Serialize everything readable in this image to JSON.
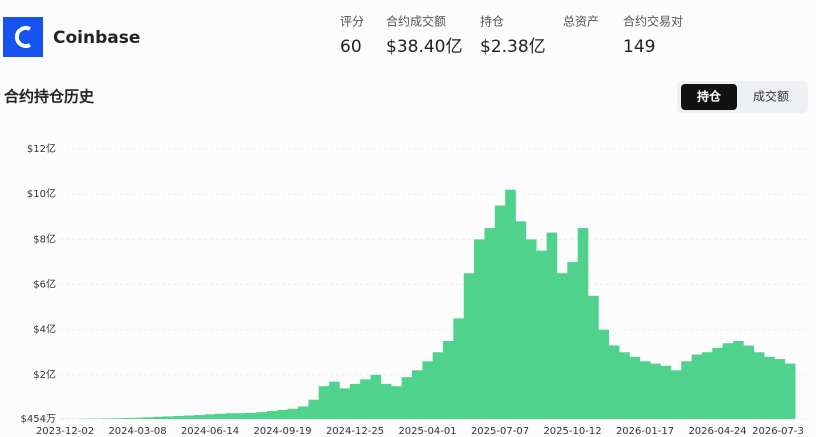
{
  "header": {
    "name": "Coinbase"
  },
  "stats": [
    {
      "label": "评分",
      "value": "60"
    },
    {
      "label": "合约成交额",
      "value": "$38.40亿"
    },
    {
      "label": "持仓",
      "value": "$2.38亿"
    },
    {
      "label": "总资产"
    },
    {
      "label": "合约交易对",
      "value": "149"
    }
  ],
  "section_title": "合约持仓历史",
  "toggle": [
    "持仓",
    "成交额"
  ],
  "chart_data": {
    "type": "bar",
    "color": "#4fd28c",
    "categories": [
      "2023-12-02",
      null,
      null,
      null,
      null,
      null,
      null,
      "2024-03-08",
      null,
      null,
      null,
      null,
      null,
      null,
      "2024-06-14",
      null,
      null,
      null,
      null,
      null,
      null,
      "2024-09-19",
      null,
      null,
      null,
      null,
      null,
      null,
      "2024-12-25",
      null,
      null,
      null,
      null,
      null,
      null,
      "2025-04-01",
      null,
      null,
      null,
      null,
      null,
      null,
      "2025-07-07",
      null,
      null,
      null,
      null,
      null,
      null,
      "2025-10-12",
      null,
      null,
      null,
      null,
      null,
      null,
      "2026-01-17",
      null,
      null,
      null,
      null,
      null,
      null,
      "2026-04-24",
      null,
      null,
      null,
      null,
      null,
      null,
      "2026-07-3"
    ],
    "values": [
      0.05,
      0.05,
      0.06,
      0.06,
      0.07,
      0.08,
      0.09,
      0.1,
      0.12,
      0.14,
      0.16,
      0.18,
      0.2,
      0.22,
      0.25,
      0.28,
      0.3,
      0.3,
      0.32,
      0.35,
      0.4,
      0.45,
      0.5,
      0.6,
      0.9,
      1.5,
      1.7,
      1.4,
      1.6,
      1.8,
      2.0,
      1.6,
      1.5,
      1.9,
      2.2,
      2.6,
      3.0,
      3.5,
      4.5,
      6.5,
      8.0,
      8.5,
      9.5,
      10.2,
      8.8,
      8.0,
      7.5,
      8.3,
      6.5,
      7.0,
      8.5,
      5.5,
      4.0,
      3.3,
      3.0,
      2.8,
      2.6,
      2.5,
      2.4,
      2.2,
      2.6,
      2.9,
      3.0,
      3.2,
      3.4,
      3.5,
      3.3,
      3.0,
      2.8,
      2.7,
      2.5
    ],
    "ylim": [
      0.0454,
      12.4
    ],
    "yticks": [
      {
        "value": 0.0454,
        "label": "$454万"
      },
      {
        "value": 2,
        "label": "$2亿"
      },
      {
        "value": 4,
        "label": "$4亿"
      },
      {
        "value": 6,
        "label": "$6亿"
      },
      {
        "value": 8,
        "label": "$8亿"
      },
      {
        "value": 10,
        "label": "$10亿"
      },
      {
        "value": 12,
        "label": "$12亿"
      }
    ],
    "grid": true
  }
}
